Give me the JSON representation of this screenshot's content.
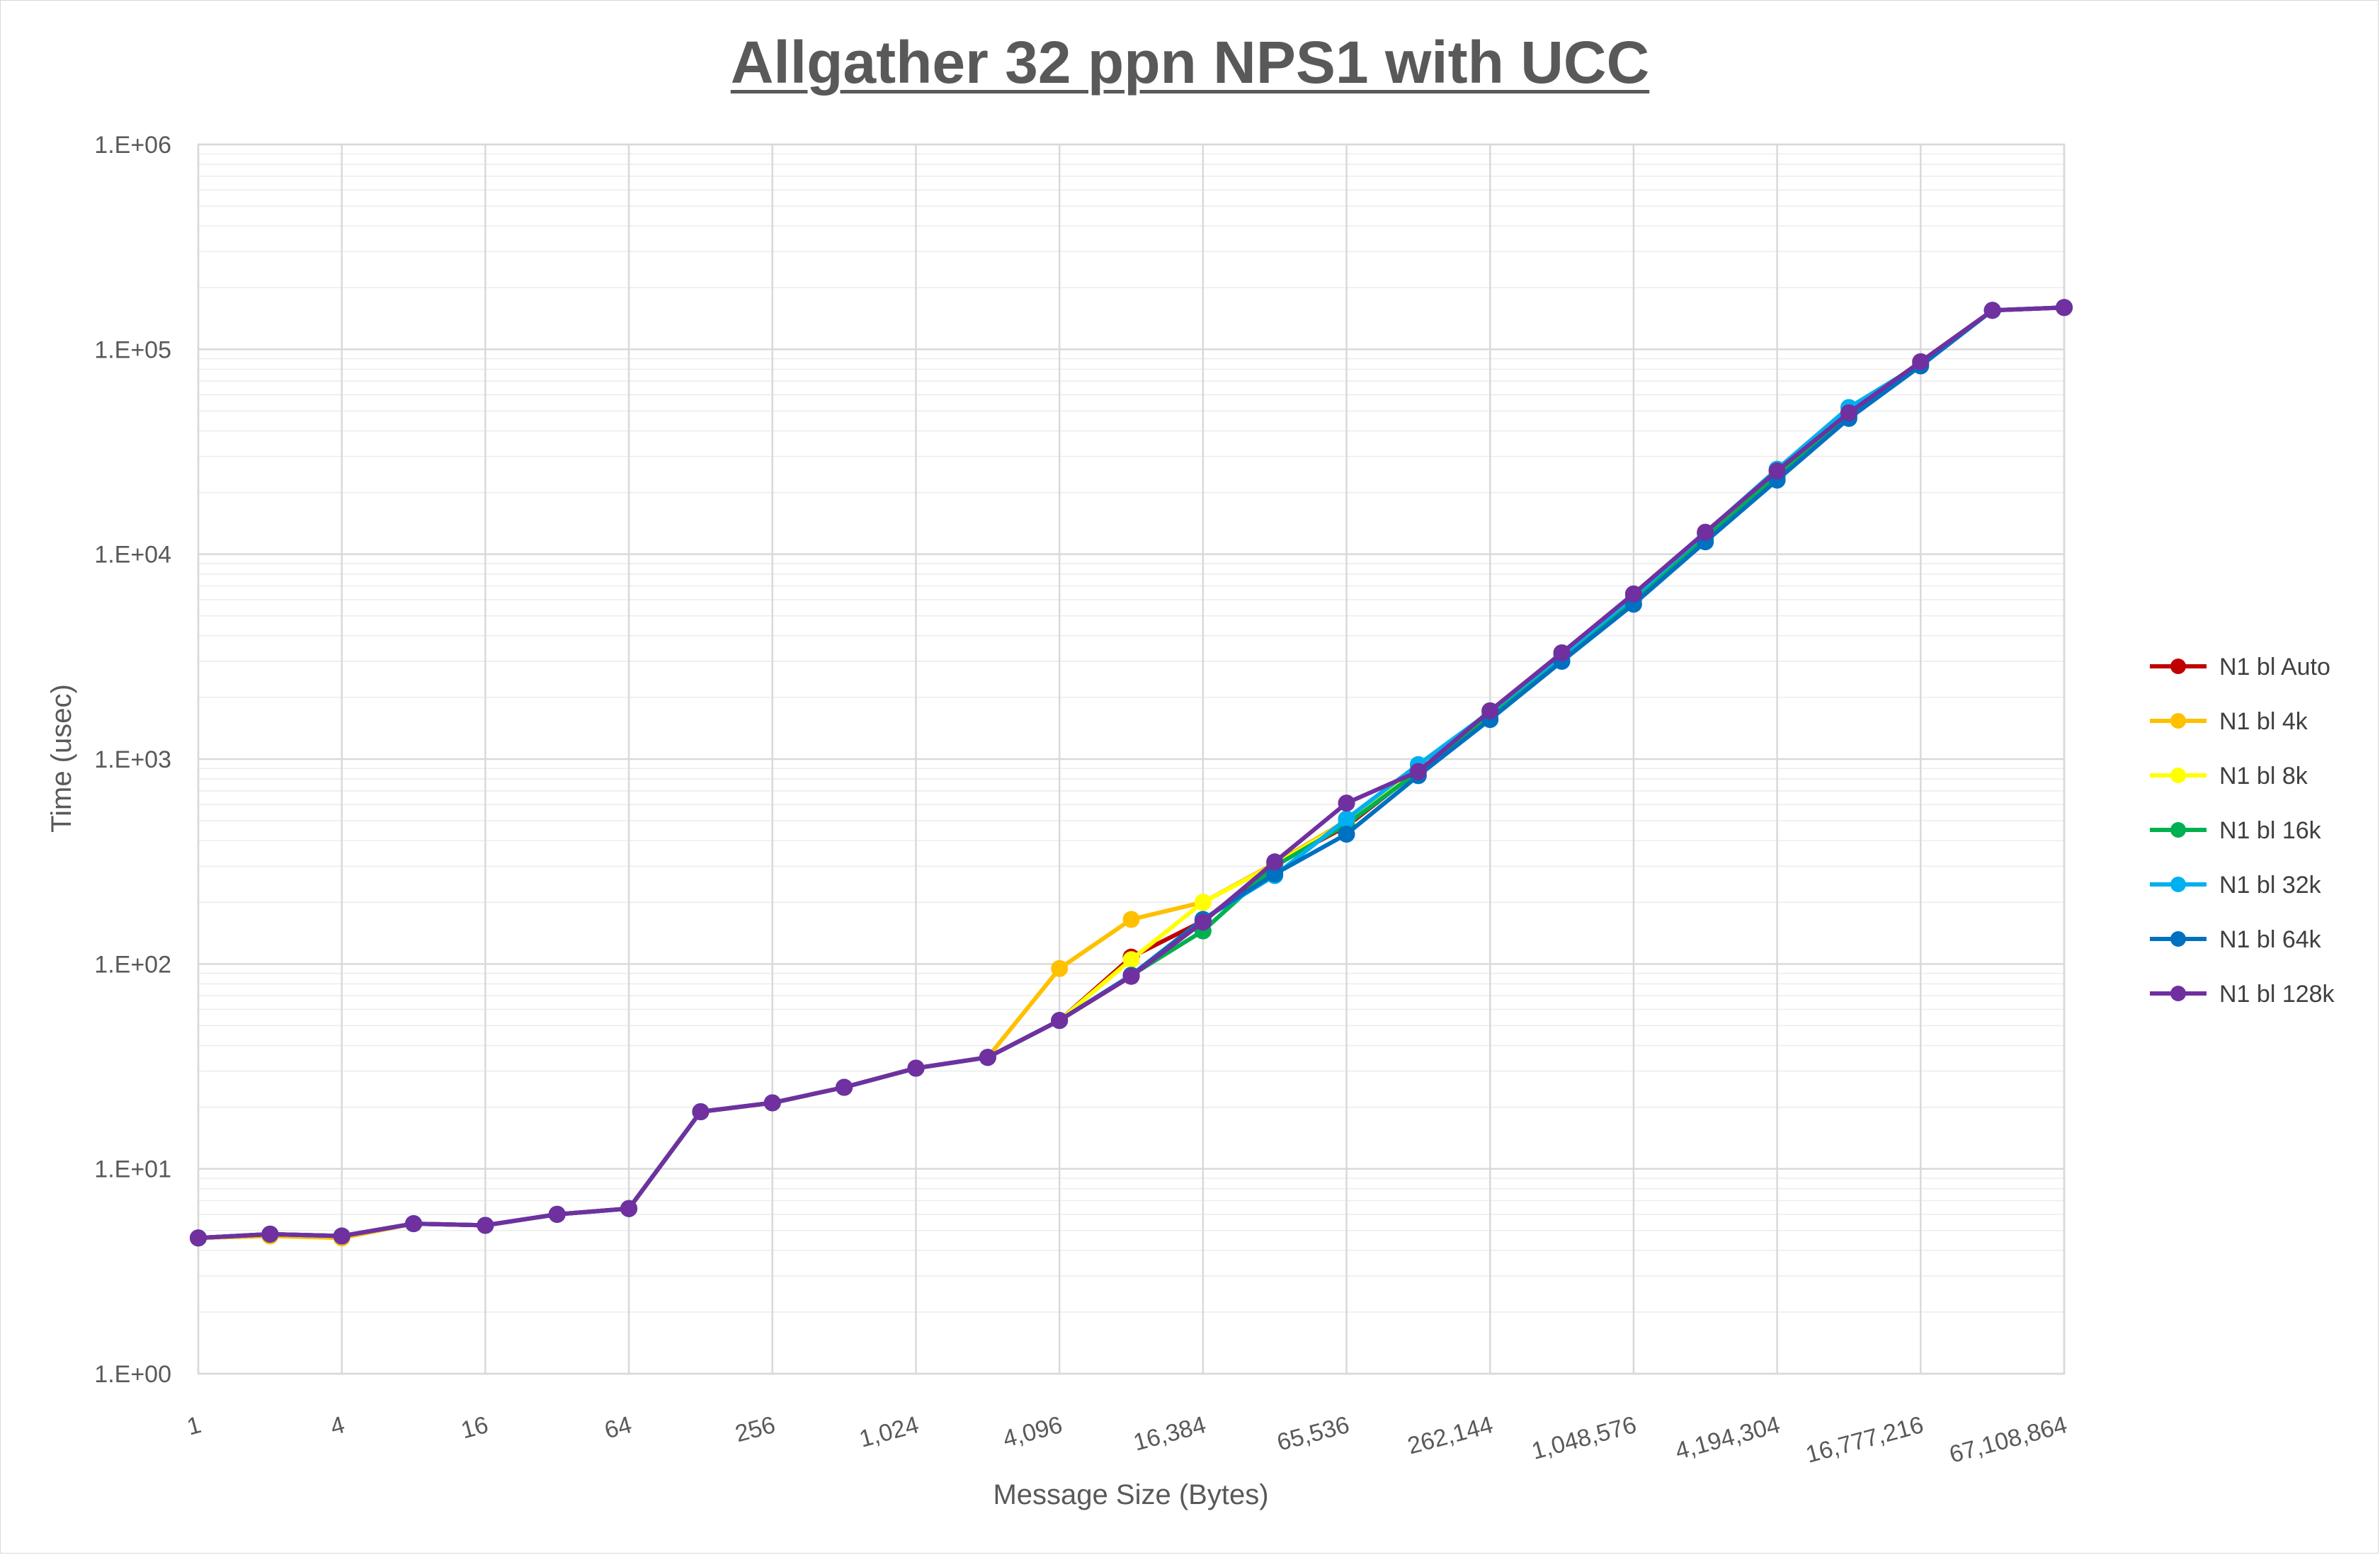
{
  "chart_data": {
    "type": "line",
    "title": "Allgather 32 ppn NPS1 with UCC",
    "xlabel": "Message Size (Bytes)",
    "ylabel": "Time (usec)",
    "x_scale": "log2",
    "y_scale": "log10",
    "ylim": [
      1,
      1000000
    ],
    "grid": true,
    "legend_position": "right",
    "x_tick_labels": [
      "1",
      "4",
      "16",
      "64",
      "256",
      "1,024",
      "4,096",
      "16,384",
      "65,536",
      "262,144",
      "1,048,576",
      "4,194,304",
      "16,777,216",
      "67,108,864"
    ],
    "y_tick_labels": [
      "1.E+00",
      "1.E+01",
      "1.E+02",
      "1.E+03",
      "1.E+04",
      "1.E+05",
      "1.E+06"
    ],
    "x": [
      1,
      2,
      4,
      8,
      16,
      32,
      64,
      128,
      256,
      512,
      1024,
      2048,
      4096,
      8192,
      16384,
      32768,
      65536,
      131072,
      262144,
      524288,
      1048576,
      2097152,
      4194304,
      8388608,
      16777216,
      33554432,
      67108864
    ],
    "series": [
      {
        "name": "N1 bl Auto",
        "color": "#c00000",
        "values": [
          4.6,
          4.8,
          4.7,
          5.4,
          5.3,
          6.0,
          6.4,
          19,
          21,
          25,
          31,
          35,
          53,
          108,
          162,
          305,
          470,
          880,
          1720,
          3300,
          6300,
          12500,
          25000,
          49000,
          87000,
          155000,
          160000
        ]
      },
      {
        "name": "N1 bl 4k",
        "color": "#ffc000",
        "values": [
          4.6,
          4.7,
          4.6,
          5.4,
          5.3,
          6.0,
          6.4,
          19,
          21,
          25,
          31,
          35,
          95,
          165,
          200,
          310,
          500,
          900,
          1700,
          3300,
          6300,
          12500,
          25000,
          49000,
          87000,
          155000,
          160000
        ]
      },
      {
        "name": "N1 bl 8k",
        "color": "#ffff00",
        "values": [
          4.6,
          4.8,
          4.7,
          5.4,
          5.3,
          6.0,
          6.4,
          19,
          21,
          25,
          31,
          35,
          53,
          105,
          200,
          305,
          490,
          880,
          1680,
          3200,
          6100,
          12200,
          24500,
          48000,
          86000,
          155000,
          160000
        ]
      },
      {
        "name": "N1 bl 16k",
        "color": "#00b050",
        "values": [
          4.6,
          4.8,
          4.7,
          5.4,
          5.3,
          6.0,
          6.4,
          19,
          21,
          25,
          31,
          35,
          53,
          88,
          145,
          300,
          480,
          870,
          1650,
          3150,
          6000,
          12000,
          24000,
          47500,
          85000,
          155000,
          160000
        ]
      },
      {
        "name": "N1 bl 32k",
        "color": "#00b0f0",
        "values": [
          4.6,
          4.8,
          4.7,
          5.4,
          5.3,
          6.0,
          6.4,
          19,
          21,
          25,
          31,
          35,
          53,
          88,
          165,
          270,
          510,
          940,
          1700,
          3200,
          6200,
          12700,
          26000,
          52000,
          85000,
          155000,
          160000
        ]
      },
      {
        "name": "N1 bl 64k",
        "color": "#0070c0",
        "values": [
          4.6,
          4.8,
          4.7,
          5.4,
          5.3,
          6.0,
          6.4,
          19,
          21,
          25,
          31,
          35,
          53,
          88,
          165,
          275,
          430,
          830,
          1560,
          3000,
          5700,
          11500,
          23000,
          46000,
          83000,
          155000,
          160000
        ]
      },
      {
        "name": "N1 bl 128k",
        "color": "#7030a0",
        "values": [
          4.6,
          4.8,
          4.7,
          5.4,
          5.3,
          6.0,
          6.4,
          19,
          21,
          25,
          31,
          35,
          53,
          87,
          160,
          315,
          610,
          870,
          1720,
          3300,
          6400,
          12800,
          25500,
          49000,
          87000,
          155000,
          160000
        ]
      }
    ]
  }
}
